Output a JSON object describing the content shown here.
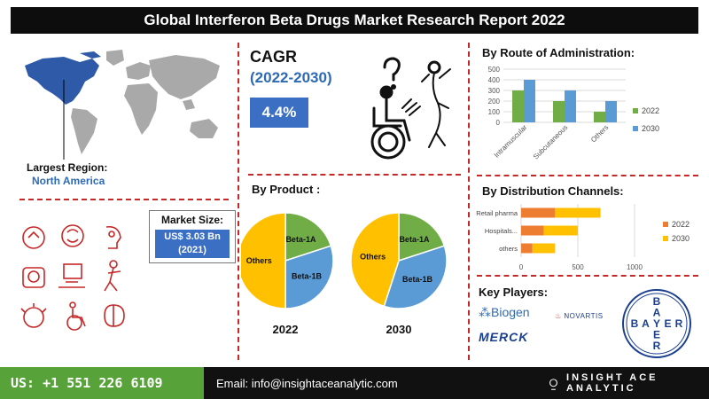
{
  "title": "Global Interferon Beta Drugs Market Research Report 2022",
  "region": {
    "label": "Largest Region:",
    "value": "North America"
  },
  "cagr": {
    "label": "CAGR",
    "period": "(2022-2030)",
    "value": "4.4%"
  },
  "market_size": {
    "label": "Market Size:",
    "value_line1": "US$ 3.03 Bn",
    "value_line2": "(2021)"
  },
  "product": {
    "heading": "By Product :"
  },
  "route": {
    "heading": "By Route of Administration:"
  },
  "distribution": {
    "heading": "By Distribution Channels:"
  },
  "key_players": {
    "heading": "Key Players:",
    "names": [
      "Biogen",
      "NOVARTIS",
      "MERCK",
      "BAYER"
    ]
  },
  "footer": {
    "phone": "US: +1 551 226 6109",
    "email": "Email: info@insightaceanalytic.com",
    "brand": "INSIGHT ACE ANALYTIC"
  },
  "colors": {
    "blue": "#5b9bd5",
    "green": "#70ad47",
    "orange": "#ed7d31",
    "yellow": "#ffc000",
    "accent": "#3a6fc4"
  },
  "chart_data": [
    {
      "type": "bar",
      "categories": [
        "Intramuscular",
        "Subcutaneous",
        "Others"
      ],
      "series": [
        {
          "name": "2022",
          "values": [
            300,
            200,
            100
          ],
          "color": "#70ad47"
        },
        {
          "name": "2030",
          "values": [
            400,
            300,
            200
          ],
          "color": "#5b9bd5"
        }
      ],
      "ylim": [
        0,
        500
      ],
      "yticks": [
        "0",
        "100",
        "200",
        "300",
        "400",
        "500"
      ],
      "grid": true,
      "legend": "right"
    },
    {
      "type": "bar",
      "orientation": "horizontal",
      "stacked": true,
      "categories": [
        "Retail pharma",
        "Hospitals...",
        "others"
      ],
      "series": [
        {
          "name": "2022",
          "values": [
            300,
            200,
            100
          ],
          "color": "#ed7d31"
        },
        {
          "name": "2030",
          "values": [
            400,
            300,
            200
          ],
          "color": "#ffc000"
        }
      ],
      "xlim": [
        0,
        1000
      ],
      "xticks": [
        "0",
        "500",
        "1000"
      ],
      "legend": "right"
    },
    {
      "type": "pie",
      "title": "2022",
      "labels": [
        "Beta-1A",
        "Beta-1B",
        "Others"
      ],
      "values": [
        20,
        30,
        50
      ],
      "colors": [
        "#70ad47",
        "#5b9bd5",
        "#ffc000"
      ]
    },
    {
      "type": "pie",
      "title": "2030",
      "labels": [
        "Beta-1A",
        "Beta-1B",
        "Others"
      ],
      "values": [
        20,
        35,
        45
      ],
      "colors": [
        "#70ad47",
        "#5b9bd5",
        "#ffc000"
      ]
    }
  ]
}
